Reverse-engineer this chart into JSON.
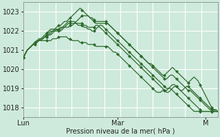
{
  "bg_color": "#ceeadc",
  "grid_color": "#ffffff",
  "line_color": "#2d6a2d",
  "marker_color": "#2d6a2d",
  "xlabel": "Pression niveau de la mer( hPa )",
  "ylim": [
    1017.5,
    1023.5
  ],
  "yticks": [
    1018,
    1019,
    1020,
    1021,
    1022,
    1023
  ],
  "xtick_labels": [
    "Lun",
    "Mar",
    "M"
  ],
  "xtick_positions": [
    0,
    48,
    93
  ],
  "total_points": 100,
  "series": [
    [
      1020.6,
      1020.8,
      1021.0,
      1021.1,
      1021.2,
      1021.3,
      1021.4,
      1021.5,
      1021.6,
      1021.6,
      1021.6,
      1021.7,
      1021.7,
      1021.8,
      1021.9,
      1022.0,
      1022.1,
      1022.2,
      1022.3,
      1022.3,
      1022.4,
      1022.5,
      1022.5,
      1022.6,
      1022.7,
      1022.8,
      1022.9,
      1023.0,
      1023.1,
      1023.2,
      1023.1,
      1023.0,
      1022.9,
      1022.8,
      1022.7,
      1022.6,
      1022.5,
      1022.4,
      1022.4,
      1022.4,
      1022.4,
      1022.4,
      1022.4,
      1022.4,
      1022.3,
      1022.2,
      1022.1,
      1022.0,
      1021.9,
      1021.8,
      1021.7,
      1021.6,
      1021.5,
      1021.4,
      1021.3,
      1021.2,
      1021.1,
      1021.0,
      1020.9,
      1020.8,
      1020.7,
      1020.6,
      1020.5,
      1020.4,
      1020.3,
      1020.3,
      1020.2,
      1020.1,
      1020.0,
      1019.9,
      1019.8,
      1019.7,
      1019.7,
      1019.8,
      1019.9,
      1020.0,
      1020.1,
      1020.0,
      1019.9,
      1019.8,
      1019.7,
      1019.6,
      1019.5,
      1019.4,
      1019.3,
      1019.4,
      1019.5,
      1019.6,
      1019.5,
      1019.4,
      1019.2,
      1019.0,
      1018.8,
      1018.6,
      1018.4,
      1018.2,
      1018.0,
      1017.9,
      1017.8,
      1017.8
    ],
    [
      1020.6,
      1020.8,
      1021.0,
      1021.1,
      1021.2,
      1021.3,
      1021.4,
      1021.5,
      1021.5,
      1021.6,
      1021.6,
      1021.7,
      1021.7,
      1021.8,
      1021.8,
      1021.9,
      1022.0,
      1022.1,
      1022.1,
      1022.2,
      1022.2,
      1022.2,
      1022.2,
      1022.2,
      1022.3,
      1022.3,
      1022.4,
      1022.5,
      1022.6,
      1022.7,
      1022.8,
      1022.8,
      1022.8,
      1022.8,
      1022.7,
      1022.7,
      1022.6,
      1022.5,
      1022.5,
      1022.5,
      1022.5,
      1022.5,
      1022.5,
      1022.4,
      1022.3,
      1022.2,
      1022.1,
      1022.0,
      1021.9,
      1021.8,
      1021.7,
      1021.6,
      1021.5,
      1021.4,
      1021.3,
      1021.2,
      1021.1,
      1021.0,
      1020.9,
      1020.8,
      1020.7,
      1020.6,
      1020.5,
      1020.4,
      1020.3,
      1020.2,
      1020.1,
      1020.0,
      1019.9,
      1019.8,
      1019.7,
      1019.6,
      1019.5,
      1019.5,
      1019.6,
      1019.7,
      1019.7,
      1019.6,
      1019.5,
      1019.4,
      1019.3,
      1019.2,
      1019.1,
      1019.0,
      1018.9,
      1018.9,
      1018.8,
      1018.7,
      1018.6,
      1018.5,
      1018.4,
      1018.3,
      1018.2,
      1018.1,
      1018.0,
      1017.9,
      1017.9,
      1017.9,
      1017.9,
      1017.8
    ],
    [
      1020.6,
      1020.8,
      1021.0,
      1021.1,
      1021.2,
      1021.3,
      1021.3,
      1021.4,
      1021.5,
      1021.5,
      1021.5,
      1021.5,
      1021.5,
      1021.5,
      1021.5,
      1021.6,
      1021.6,
      1021.6,
      1021.7,
      1021.7,
      1021.7,
      1021.7,
      1021.7,
      1021.6,
      1021.6,
      1021.5,
      1021.5,
      1021.5,
      1021.5,
      1021.4,
      1021.4,
      1021.4,
      1021.4,
      1021.3,
      1021.3,
      1021.3,
      1021.3,
      1021.2,
      1021.2,
      1021.2,
      1021.2,
      1021.2,
      1021.2,
      1021.2,
      1021.1,
      1021.0,
      1020.9,
      1020.9,
      1020.8,
      1020.7,
      1020.6,
      1020.5,
      1020.4,
      1020.3,
      1020.2,
      1020.1,
      1020.0,
      1019.9,
      1019.8,
      1019.7,
      1019.6,
      1019.5,
      1019.4,
      1019.3,
      1019.2,
      1019.1,
      1019.0,
      1018.9,
      1018.8,
      1018.8,
      1018.8,
      1018.9,
      1018.9,
      1018.9,
      1019.0,
      1019.0,
      1018.9,
      1018.8,
      1018.7,
      1018.6,
      1018.5,
      1018.4,
      1018.3,
      1018.2,
      1018.1,
      1018.0,
      1017.9,
      1017.8,
      1017.8,
      1017.8,
      1017.8,
      1017.8,
      1017.8,
      1017.8,
      1017.8,
      1017.8,
      1017.8,
      1017.8,
      1017.8,
      1017.8
    ],
    [
      1020.6,
      1020.8,
      1021.0,
      1021.1,
      1021.2,
      1021.3,
      1021.4,
      1021.5,
      1021.5,
      1021.6,
      1021.7,
      1021.8,
      1021.9,
      1022.0,
      1022.1,
      1022.1,
      1022.1,
      1022.1,
      1022.0,
      1022.0,
      1022.1,
      1022.2,
      1022.3,
      1022.4,
      1022.4,
      1022.4,
      1022.4,
      1022.4,
      1022.3,
      1022.3,
      1022.3,
      1022.2,
      1022.2,
      1022.1,
      1022.1,
      1022.0,
      1022.0,
      1022.1,
      1022.2,
      1022.3,
      1022.3,
      1022.2,
      1022.1,
      1022.0,
      1021.9,
      1021.8,
      1021.7,
      1021.6,
      1021.5,
      1021.4,
      1021.3,
      1021.2,
      1021.1,
      1021.0,
      1020.9,
      1020.8,
      1020.7,
      1020.6,
      1020.5,
      1020.4,
      1020.3,
      1020.2,
      1020.1,
      1020.0,
      1019.9,
      1019.8,
      1019.7,
      1019.6,
      1019.5,
      1019.4,
      1019.3,
      1019.2,
      1019.1,
      1019.0,
      1019.0,
      1019.1,
      1019.2,
      1019.2,
      1019.1,
      1019.0,
      1018.9,
      1018.9,
      1019.0,
      1019.1,
      1019.1,
      1019.0,
      1018.9,
      1018.8,
      1018.7,
      1018.6,
      1018.5,
      1018.4,
      1018.3,
      1018.2,
      1018.1,
      1018.0,
      1017.9,
      1017.8,
      1017.8,
      1017.8
    ],
    [
      1020.6,
      1020.8,
      1021.0,
      1021.1,
      1021.2,
      1021.3,
      1021.4,
      1021.4,
      1021.5,
      1021.5,
      1021.6,
      1021.7,
      1021.8,
      1021.9,
      1022.0,
      1022.0,
      1022.0,
      1022.0,
      1022.1,
      1022.1,
      1022.2,
      1022.3,
      1022.4,
      1022.5,
      1022.5,
      1022.5,
      1022.5,
      1022.4,
      1022.4,
      1022.4,
      1022.4,
      1022.3,
      1022.3,
      1022.2,
      1022.2,
      1022.2,
      1022.2,
      1022.3,
      1022.3,
      1022.2,
      1022.1,
      1022.0,
      1021.9,
      1021.8,
      1021.7,
      1021.6,
      1021.5,
      1021.4,
      1021.3,
      1021.2,
      1021.1,
      1021.0,
      1020.9,
      1020.8,
      1020.7,
      1020.6,
      1020.5,
      1020.4,
      1020.3,
      1020.2,
      1020.1,
      1020.0,
      1019.9,
      1019.8,
      1019.7,
      1019.6,
      1019.5,
      1019.4,
      1019.3,
      1019.2,
      1019.1,
      1019.0,
      1018.9,
      1018.8,
      1018.8,
      1018.9,
      1019.0,
      1019.1,
      1019.1,
      1019.0,
      1018.9,
      1018.8,
      1018.7,
      1018.6,
      1018.5,
      1018.4,
      1018.3,
      1018.2,
      1018.1,
      1018.0,
      1017.9,
      1017.8,
      1017.8,
      1017.8,
      1017.8,
      1017.8,
      1017.8,
      1017.8,
      1017.8,
      1017.8
    ]
  ]
}
